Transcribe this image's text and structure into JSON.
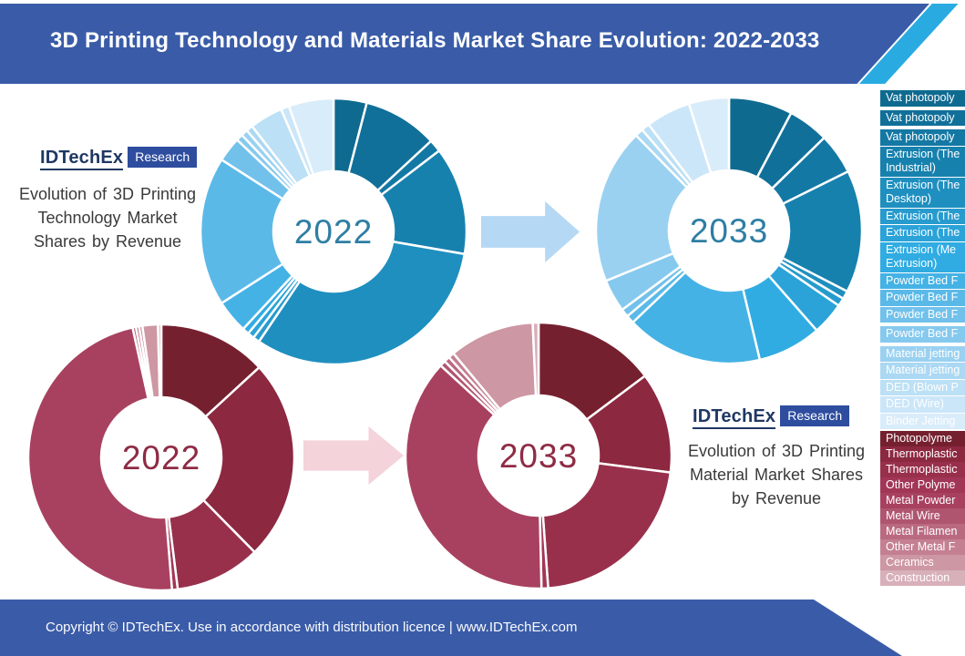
{
  "header": {
    "title": "3D Printing Technology and Materials Market Share Evolution: 2022-2033",
    "bar_color": "#3A5CA8",
    "accent_color": "#29ABE2"
  },
  "branding": {
    "brand": "IDTechEx",
    "badge": "Research",
    "brand_color": "#1F3864",
    "badge_bg": "#2E4D9E"
  },
  "panels": {
    "technology_caption": "Evolution of 3D Printing Technology Market Shares by Revenue",
    "materials_caption": "Evolution of 3D Printing Material Market Shares by Revenue"
  },
  "arrows": {
    "technology_color": "#B5D8F4",
    "materials_color": "#F4D3DB"
  },
  "footer": {
    "text": "Copyright © IDTechEx.  Use in accordance with distribution licence  |  www.IDTechEx.com",
    "bar_color": "#3A5CA8"
  },
  "palettes": {
    "technology": [
      "#0F6A90",
      "#117099",
      "#1478A4",
      "#1781AE",
      "#1F8FBF",
      "#279BCD",
      "#2BA3D8",
      "#30ACE2",
      "#45B2E5",
      "#5BB9E8",
      "#71C1EB",
      "#86C9EE",
      "#9AD1F1",
      "#ABD8F3",
      "#BCE0F5",
      "#CBE6F8",
      "#D9ECFA"
    ],
    "materials": [
      "#75202F",
      "#8C2840",
      "#98304C",
      "#A23656",
      "#A8415F",
      "#B05570",
      "#BA6A80",
      "#C48092",
      "#CD97A3",
      "#D8B0B9"
    ]
  },
  "legend": {
    "technology": [
      {
        "lines": [
          "Vat photopoly"
        ],
        "gap_after": true
      },
      {
        "lines": [
          "Vat photopoly"
        ],
        "gap_after": true
      },
      {
        "lines": [
          "Vat photopoly"
        ]
      },
      {
        "lines": [
          "Extrusion (The",
          "Industrial)"
        ]
      },
      {
        "lines": [
          "Extrusion (The",
          "Desktop)"
        ]
      },
      {
        "lines": [
          "Extrusion (The"
        ]
      },
      {
        "lines": [
          "Extrusion (The"
        ]
      },
      {
        "lines": [
          "Extrusion (Me",
          "Extrusion)"
        ]
      },
      {
        "lines": [
          "Powder Bed F"
        ]
      },
      {
        "lines": [
          "Powder Bed F"
        ]
      },
      {
        "lines": [
          "Powder Bed F"
        ],
        "gap_after": true
      },
      {
        "lines": [
          "Powder Bed F"
        ],
        "gap_after": true
      },
      {
        "lines": [
          "Material jetting"
        ]
      },
      {
        "lines": [
          "Material jetting"
        ]
      },
      {
        "lines": [
          "DED (Blown P"
        ]
      },
      {
        "lines": [
          "DED (Wire)"
        ]
      },
      {
        "lines": [
          "Binder Jetting"
        ]
      }
    ],
    "materials": [
      {
        "lines": [
          "Photopolyme"
        ]
      },
      {
        "lines": [
          "Thermoplastic"
        ]
      },
      {
        "lines": [
          "Thermoplastic"
        ]
      },
      {
        "lines": [
          "Other Polyme"
        ]
      },
      {
        "lines": [
          "Metal Powder"
        ]
      },
      {
        "lines": [
          "Metal Wire"
        ]
      },
      {
        "lines": [
          "Metal Filamen"
        ]
      },
      {
        "lines": [
          "Other Metal F"
        ]
      },
      {
        "lines": [
          "Ceramics"
        ]
      },
      {
        "lines": [
          "Construction"
        ]
      }
    ]
  },
  "chart_data": [
    {
      "type": "pie",
      "subtype": "donut",
      "id": "technology-2022",
      "center_label": "2022",
      "label_color": "#2E7EA3",
      "palette": "technology",
      "legend_position": "right",
      "categories": [
        "Vat photopoly",
        "Vat photopoly",
        "Vat photopoly",
        "Extrusion (The Industrial)",
        "Extrusion (The Desktop)",
        "Extrusion (The",
        "Extrusion (The",
        "Extrusion (Me Extrusion)",
        "Powder Bed F",
        "Powder Bed F",
        "Powder Bed F",
        "Powder Bed F",
        "Material jetting",
        "Material jetting",
        "DED (Blown P",
        "DED (Wire)",
        "Binder Jetting"
      ],
      "values": [
        4,
        9,
        1.5,
        13,
        31.5,
        0.8,
        0.8,
        0.8,
        4,
        18,
        3,
        0.8,
        0.8,
        0.8,
        4,
        1,
        5.4
      ]
    },
    {
      "type": "pie",
      "subtype": "donut",
      "id": "technology-2033",
      "center_label": "2033",
      "label_color": "#2E7EA3",
      "palette": "technology",
      "legend_position": "right",
      "categories": [
        "Vat photopoly",
        "Vat photopoly",
        "Vat photopoly",
        "Extrusion (The Industrial)",
        "Extrusion (The Desktop)",
        "Extrusion (The",
        "Extrusion (The",
        "Extrusion (Me Extrusion)",
        "Powder Bed F",
        "Powder Bed F",
        "Powder Bed F",
        "Powder Bed F",
        "Material jetting",
        "Material jetting",
        "DED (Blown P",
        "DED (Wire)",
        "Binder Jetting"
      ],
      "values": [
        7.8,
        5,
        5,
        15,
        1,
        1,
        4,
        7.8,
        16.7,
        1,
        1,
        4,
        19,
        1,
        1,
        5.5,
        4.9
      ]
    },
    {
      "type": "pie",
      "subtype": "donut",
      "id": "materials-2022",
      "center_label": "2022",
      "label_color": "#8E2B45",
      "palette": "materials",
      "legend_position": "right",
      "categories": [
        "Photopolyme",
        "Thermoplastic",
        "Thermoplastic",
        "Other Polyme",
        "Metal Powder",
        "Metal Wire",
        "Metal Filamen",
        "Other Metal F",
        "Ceramics",
        "Construction"
      ],
      "values": [
        13.3,
        24.7,
        10.5,
        0.7,
        48.3,
        0.4,
        0.4,
        0.4,
        1.9,
        0.4
      ]
    },
    {
      "type": "pie",
      "subtype": "donut",
      "id": "materials-2033",
      "center_label": "2033",
      "label_color": "#8E2B45",
      "palette": "materials",
      "legend_position": "right",
      "categories": [
        "Photopolyme",
        "Thermoplastic",
        "Thermoplastic",
        "Other Polyme",
        "Metal Powder",
        "Metal Wire",
        "Metal Filamen",
        "Other Metal F",
        "Ceramics",
        "Construction"
      ],
      "values": [
        14.7,
        12.2,
        21.7,
        0.8,
        37,
        0.7,
        0.7,
        0.7,
        10.3,
        0.7
      ]
    }
  ]
}
